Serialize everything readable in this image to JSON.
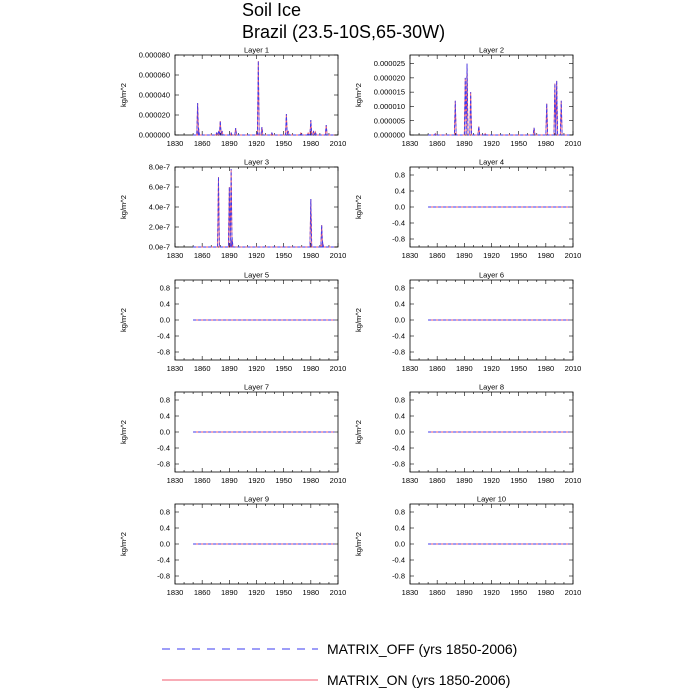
{
  "title": {
    "line1": "Soil Ice",
    "line2": "Brazil (23.5-10S,65-30W)"
  },
  "legend": {
    "entries": [
      {
        "label": "MATRIX_OFF (yrs 1850-2006)",
        "color": "#3b3bf0",
        "dash": true
      },
      {
        "label": "MATRIX_ON (yrs 1850-2006)",
        "color": "#f05a6e",
        "dash": false
      }
    ]
  },
  "chart_data": [
    {
      "type": "line",
      "title": "Layer 1",
      "ylabel": "kg/m^2",
      "xlim": [
        1830,
        2010
      ],
      "xticks": [
        1830,
        1860,
        1890,
        1920,
        1950,
        1980,
        2010
      ],
      "ylim": [
        0,
        8e-05
      ],
      "yticks": [
        {
          "v": 0,
          "label": "0.000000"
        },
        {
          "v": 2e-05,
          "label": "0.000020"
        },
        {
          "v": 4e-05,
          "label": "0.000040"
        },
        {
          "v": 6e-05,
          "label": "0.000060"
        },
        {
          "v": 8e-05,
          "label": "0.000080"
        }
      ],
      "spikes": [
        [
          1855,
          3.2e-05
        ],
        [
          1856,
          7e-06
        ],
        [
          1876,
          2e-06
        ],
        [
          1878,
          3e-06
        ],
        [
          1880,
          1.4e-05
        ],
        [
          1882,
          4e-06
        ],
        [
          1892,
          2e-06
        ],
        [
          1897,
          7e-06
        ],
        [
          1921,
          2e-06
        ],
        [
          1922,
          7.4e-05
        ],
        [
          1926,
          8e-06
        ],
        [
          1937,
          2e-06
        ],
        [
          1953,
          2.1e-05
        ],
        [
          1955,
          4e-06
        ],
        [
          1969,
          2e-06
        ],
        [
          1977,
          2e-06
        ],
        [
          1980,
          1.5e-05
        ],
        [
          1983,
          4e-06
        ],
        [
          1985,
          3e-06
        ],
        [
          1997,
          1e-05
        ]
      ]
    },
    {
      "type": "line",
      "title": "Layer 2",
      "ylabel": "kg/m^2",
      "xlim": [
        1830,
        2010
      ],
      "xticks": [
        1830,
        1860,
        1890,
        1920,
        1950,
        1980,
        2010
      ],
      "ylim": [
        0,
        2.8e-05
      ],
      "yticks": [
        {
          "v": 0,
          "label": "0.000000"
        },
        {
          "v": 5e-06,
          "label": "0.000005"
        },
        {
          "v": 1e-05,
          "label": "0.000010"
        },
        {
          "v": 1.5e-05,
          "label": "0.000015"
        },
        {
          "v": 2e-05,
          "label": "0.000020"
        },
        {
          "v": 2.5e-05,
          "label": "0.000025"
        }
      ],
      "spikes": [
        [
          1858,
          5e-07
        ],
        [
          1880,
          1.2e-05
        ],
        [
          1891,
          2e-05
        ],
        [
          1893,
          2.5e-05
        ],
        [
          1897,
          1.5e-05
        ],
        [
          1906,
          3e-06
        ],
        [
          1913,
          5e-07
        ],
        [
          1967,
          2.5e-06
        ],
        [
          1981,
          1.1e-05
        ],
        [
          1990,
          1.8e-05
        ],
        [
          1992,
          1.9e-05
        ],
        [
          1997,
          1.2e-05
        ]
      ]
    },
    {
      "type": "line",
      "title": "Layer 3",
      "ylabel": "kg/m^2",
      "xlim": [
        1830,
        2010
      ],
      "xticks": [
        1830,
        1860,
        1890,
        1920,
        1950,
        1980,
        2010
      ],
      "ylim": [
        0,
        8e-07
      ],
      "yticks": [
        {
          "v": 0,
          "label": "0.0e-7"
        },
        {
          "v": 2e-07,
          "label": "2.0e-7"
        },
        {
          "v": 4e-07,
          "label": "4.0e-7"
        },
        {
          "v": 6e-07,
          "label": "6.0e-7"
        },
        {
          "v": 8e-07,
          "label": "8.0e-7"
        }
      ],
      "spikes": [
        [
          1878,
          7e-07
        ],
        [
          1890,
          6e-07
        ],
        [
          1892,
          7.8e-07
        ],
        [
          1893,
          1e-07
        ],
        [
          1980,
          4.8e-07
        ],
        [
          1992,
          2.2e-07
        ],
        [
          1993,
          5e-08
        ]
      ]
    },
    {
      "type": "line",
      "title": "Layer 4",
      "ylabel": "kg/m^2",
      "xlim": [
        1830,
        2010
      ],
      "xticks": [
        1830,
        1860,
        1890,
        1920,
        1950,
        1980,
        2010
      ],
      "ylim": [
        -1,
        1
      ],
      "yticks": [
        {
          "v": 0.8,
          "label": "0.8"
        },
        {
          "v": 0.4,
          "label": "0.4"
        },
        {
          "v": 0,
          "label": "0.0"
        },
        {
          "v": -0.4,
          "label": "-0.4"
        },
        {
          "v": -0.8,
          "label": "-0.8"
        }
      ],
      "line": {
        "x": [
          1850,
          2006
        ],
        "y": 0
      }
    },
    {
      "type": "line",
      "title": "Layer 5",
      "ylabel": "kg/m^2",
      "xlim": [
        1830,
        2010
      ],
      "xticks": [
        1830,
        1860,
        1890,
        1920,
        1950,
        1980,
        2010
      ],
      "ylim": [
        -1,
        1
      ],
      "yticks": [
        {
          "v": 0.8,
          "label": "0.8"
        },
        {
          "v": 0.4,
          "label": "0.4"
        },
        {
          "v": 0,
          "label": "0.0"
        },
        {
          "v": -0.4,
          "label": "-0.4"
        },
        {
          "v": -0.8,
          "label": "-0.8"
        }
      ],
      "line": {
        "x": [
          1850,
          2006
        ],
        "y": 0
      }
    },
    {
      "type": "line",
      "title": "Layer 6",
      "ylabel": "kg/m^2",
      "xlim": [
        1830,
        2010
      ],
      "xticks": [
        1830,
        1860,
        1890,
        1920,
        1950,
        1980,
        2010
      ],
      "ylim": [
        -1,
        1
      ],
      "yticks": [
        {
          "v": 0.8,
          "label": "0.8"
        },
        {
          "v": 0.4,
          "label": "0.4"
        },
        {
          "v": 0,
          "label": "0.0"
        },
        {
          "v": -0.4,
          "label": "-0.4"
        },
        {
          "v": -0.8,
          "label": "-0.8"
        }
      ],
      "line": {
        "x": [
          1850,
          2006
        ],
        "y": 0
      }
    },
    {
      "type": "line",
      "title": "Layer 7",
      "ylabel": "kg/m^2",
      "xlim": [
        1830,
        2010
      ],
      "xticks": [
        1830,
        1860,
        1890,
        1920,
        1950,
        1980,
        2010
      ],
      "ylim": [
        -1,
        1
      ],
      "yticks": [
        {
          "v": 0.8,
          "label": "0.8"
        },
        {
          "v": 0.4,
          "label": "0.4"
        },
        {
          "v": 0,
          "label": "0.0"
        },
        {
          "v": -0.4,
          "label": "-0.4"
        },
        {
          "v": -0.8,
          "label": "-0.8"
        }
      ],
      "line": {
        "x": [
          1850,
          2006
        ],
        "y": 0
      }
    },
    {
      "type": "line",
      "title": "Layer 8",
      "ylabel": "kg/m^2",
      "xlim": [
        1830,
        2010
      ],
      "xticks": [
        1830,
        1860,
        1890,
        1920,
        1950,
        1980,
        2010
      ],
      "ylim": [
        -1,
        1
      ],
      "yticks": [
        {
          "v": 0.8,
          "label": "0.8"
        },
        {
          "v": 0.4,
          "label": "0.4"
        },
        {
          "v": 0,
          "label": "0.0"
        },
        {
          "v": -0.4,
          "label": "-0.4"
        },
        {
          "v": -0.8,
          "label": "-0.8"
        }
      ],
      "line": {
        "x": [
          1850,
          2006
        ],
        "y": 0
      }
    },
    {
      "type": "line",
      "title": "Layer 9",
      "ylabel": "kg/m^2",
      "xlim": [
        1830,
        2010
      ],
      "xticks": [
        1830,
        1860,
        1890,
        1920,
        1950,
        1980,
        2010
      ],
      "ylim": [
        -1,
        1
      ],
      "yticks": [
        {
          "v": 0.8,
          "label": "0.8"
        },
        {
          "v": 0.4,
          "label": "0.4"
        },
        {
          "v": 0,
          "label": "0.0"
        },
        {
          "v": -0.4,
          "label": "-0.4"
        },
        {
          "v": -0.8,
          "label": "-0.8"
        }
      ],
      "line": {
        "x": [
          1850,
          2006
        ],
        "y": 0
      }
    },
    {
      "type": "line",
      "title": "Layer 10",
      "ylabel": "kg/m^2",
      "xlim": [
        1830,
        2010
      ],
      "xticks": [
        1830,
        1860,
        1890,
        1920,
        1950,
        1980,
        2010
      ],
      "ylim": [
        -1,
        1
      ],
      "yticks": [
        {
          "v": 0.8,
          "label": "0.8"
        },
        {
          "v": 0.4,
          "label": "0.4"
        },
        {
          "v": 0,
          "label": "0.0"
        },
        {
          "v": -0.4,
          "label": "-0.4"
        },
        {
          "v": -0.8,
          "label": "-0.8"
        }
      ],
      "line": {
        "x": [
          1850,
          2006
        ],
        "y": 0
      }
    }
  ]
}
